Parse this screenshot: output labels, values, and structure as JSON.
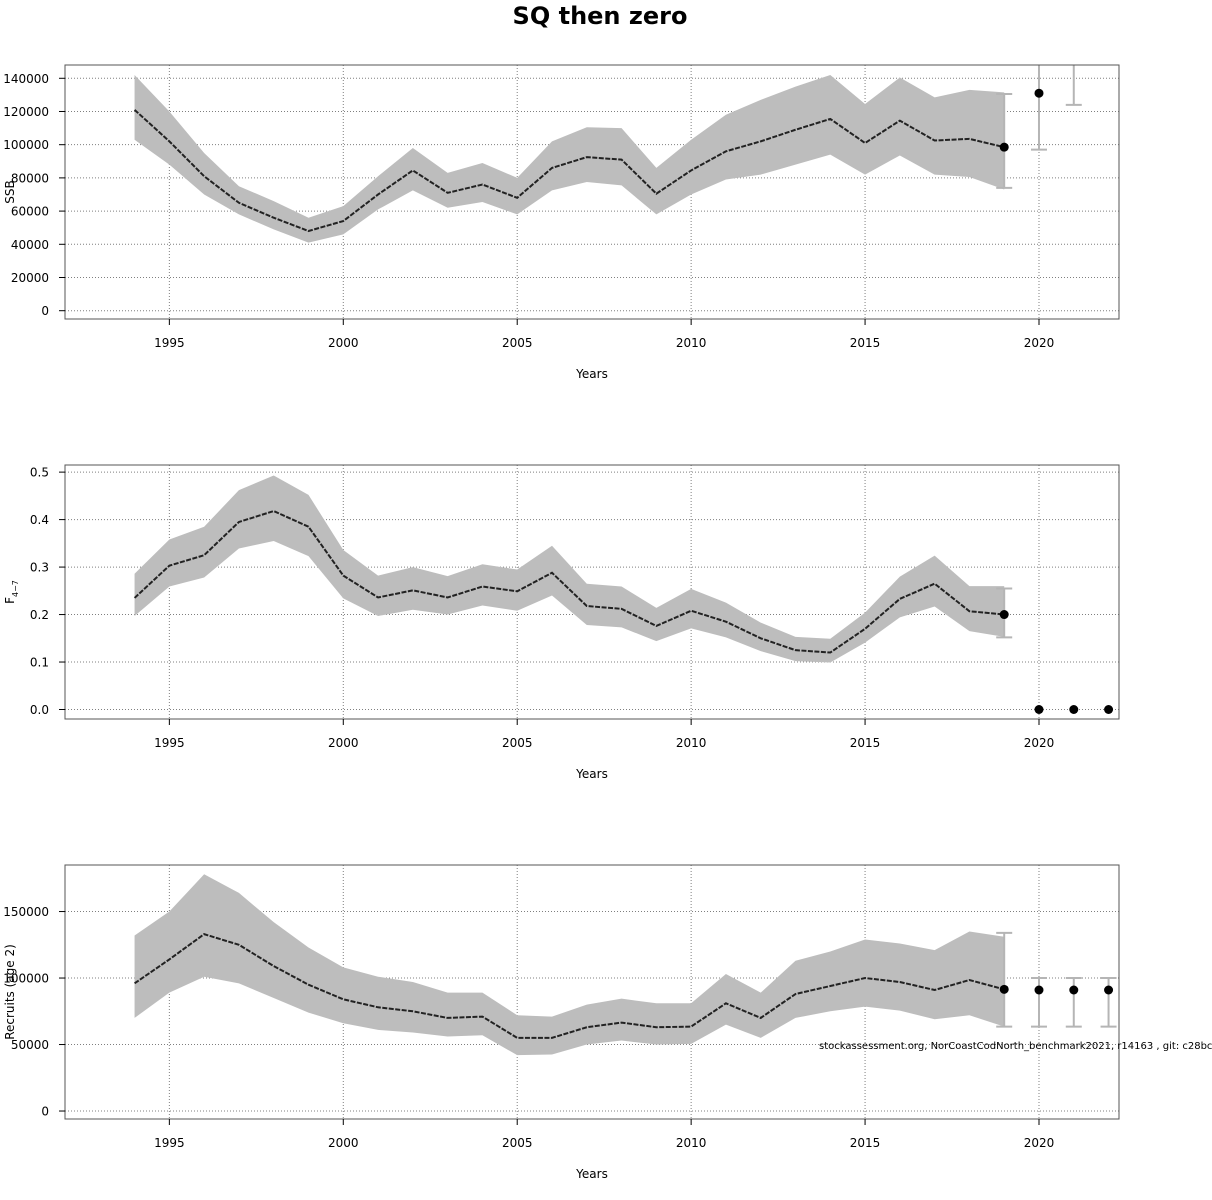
{
  "title": "SQ then zero",
  "footnote": "stockassessment.org, NorCoastCodNorth_benchmark2021, r14163 , git: c28bc",
  "colors": {
    "band": "#bdbdbd",
    "line": "#222222",
    "forecast": "#b5b5b5",
    "grid": "#7f7f7f"
  },
  "chart_data": [
    {
      "type": "line",
      "title": "",
      "xlabel": "Years",
      "ylabel": "SSB",
      "xlim": [
        1992,
        2022.3
      ],
      "ylim": [
        -5000,
        148000
      ],
      "x_ticks": [
        1995,
        2000,
        2005,
        2010,
        2015,
        2020
      ],
      "y_ticks": [
        0,
        20000,
        40000,
        60000,
        80000,
        100000,
        120000,
        140000
      ],
      "y_tick_labels": [
        "0",
        "20000",
        "40000",
        "60000",
        "80000",
        "100000",
        "120000",
        "140000"
      ],
      "grid": true,
      "years": [
        1994,
        1995,
        1996,
        1997,
        1998,
        1999,
        2000,
        2001,
        2002,
        2003,
        2004,
        2005,
        2006,
        2007,
        2008,
        2009,
        2010,
        2011,
        2012,
        2013,
        2014,
        2015,
        2016,
        2017,
        2018,
        2019
      ],
      "estimate": [
        121000,
        102000,
        81000,
        65000,
        56000,
        48000,
        54000,
        70000,
        84500,
        71000,
        76000,
        68000,
        86000,
        92500,
        91000,
        70500,
        84500,
        96000,
        102000,
        109000,
        115500,
        101000,
        114500,
        102500,
        103500,
        98500
      ],
      "lower": [
        103000,
        88000,
        70000,
        58000,
        49000,
        41000,
        46000,
        61000,
        72500,
        62000,
        65500,
        58000,
        72500,
        77500,
        75500,
        58000,
        70000,
        79000,
        82000,
        88000,
        94000,
        82000,
        93500,
        82000,
        80500,
        73000
      ],
      "upper": [
        142000,
        120000,
        95000,
        75000,
        66000,
        56000,
        63000,
        81000,
        98000,
        83000,
        89000,
        80000,
        102000,
        110500,
        110000,
        86000,
        103000,
        118000,
        127000,
        135000,
        142000,
        124500,
        140500,
        128500,
        133000,
        131500
      ],
      "forecast": [
        {
          "x": 2019,
          "value": 98500,
          "lower": 74000,
          "upper": 130500
        },
        {
          "x": 2020,
          "value": 131000,
          "lower": 97000,
          "upper": 150000
        },
        {
          "x": 2021,
          "value": null,
          "lower": 124000,
          "upper": 150000
        }
      ]
    },
    {
      "type": "line",
      "title": "",
      "xlabel": "Years",
      "ylabel": "F",
      "ylabel_sub": "4−7",
      "xlim": [
        1992,
        2022.3
      ],
      "ylim": [
        -0.02,
        0.515
      ],
      "x_ticks": [
        1995,
        2000,
        2005,
        2010,
        2015,
        2020
      ],
      "y_ticks": [
        0,
        0.1,
        0.2,
        0.3,
        0.4,
        0.5
      ],
      "y_tick_labels": [
        "0.0",
        "0.1",
        "0.2",
        "0.3",
        "0.4",
        "0.5"
      ],
      "grid": true,
      "years": [
        1994,
        1995,
        1996,
        1997,
        1998,
        1999,
        2000,
        2001,
        2002,
        2003,
        2004,
        2005,
        2006,
        2007,
        2008,
        2009,
        2010,
        2011,
        2012,
        2013,
        2014,
        2015,
        2016,
        2017,
        2018,
        2019
      ],
      "estimate": [
        0.235,
        0.303,
        0.325,
        0.395,
        0.418,
        0.385,
        0.282,
        0.236,
        0.251,
        0.236,
        0.259,
        0.249,
        0.288,
        0.218,
        0.212,
        0.176,
        0.208,
        0.185,
        0.15,
        0.125,
        0.12,
        0.17,
        0.233,
        0.265,
        0.207,
        0.2
      ],
      "lower": [
        0.197,
        0.259,
        0.278,
        0.339,
        0.355,
        0.323,
        0.234,
        0.197,
        0.21,
        0.2,
        0.219,
        0.208,
        0.24,
        0.178,
        0.173,
        0.144,
        0.171,
        0.152,
        0.123,
        0.102,
        0.099,
        0.141,
        0.194,
        0.217,
        0.165,
        0.153
      ],
      "upper": [
        0.286,
        0.358,
        0.385,
        0.462,
        0.493,
        0.452,
        0.336,
        0.282,
        0.3,
        0.281,
        0.306,
        0.295,
        0.345,
        0.265,
        0.259,
        0.214,
        0.254,
        0.225,
        0.183,
        0.153,
        0.149,
        0.204,
        0.28,
        0.324,
        0.26,
        0.26
      ],
      "forecast": [
        {
          "x": 2019,
          "value": 0.2,
          "lower": 0.152,
          "upper": 0.255
        },
        {
          "x": 2020,
          "value": 0.0,
          "lower": null,
          "upper": null
        },
        {
          "x": 2021,
          "value": 0.0,
          "lower": null,
          "upper": null
        },
        {
          "x": 2022,
          "value": 0.0,
          "lower": null,
          "upper": null
        }
      ]
    },
    {
      "type": "line",
      "title": "",
      "xlabel": "Years",
      "ylabel": "Recruits (age 2)",
      "xlim": [
        1992,
        2022.3
      ],
      "ylim": [
        -6000,
        185000
      ],
      "x_ticks": [
        1995,
        2000,
        2005,
        2010,
        2015,
        2020
      ],
      "y_ticks": [
        0,
        50000,
        100000,
        150000
      ],
      "y_tick_labels": [
        "0",
        "50000",
        "100000",
        "150000"
      ],
      "grid": true,
      "years": [
        1994,
        1995,
        1996,
        1997,
        1998,
        1999,
        2000,
        2001,
        2002,
        2003,
        2004,
        2005,
        2006,
        2007,
        2008,
        2009,
        2010,
        2011,
        2012,
        2013,
        2014,
        2015,
        2016,
        2017,
        2018,
        2019
      ],
      "estimate": [
        96000,
        114000,
        133000,
        125000,
        109000,
        95000,
        84000,
        78000,
        75000,
        70000,
        71000,
        55000,
        55000,
        63000,
        66500,
        63000,
        63500,
        81000,
        70000,
        88000,
        94000,
        100000,
        97000,
        91000,
        98500,
        91500
      ],
      "lower": [
        70000,
        89000,
        101000,
        96000,
        85000,
        74000,
        66000,
        61000,
        59000,
        56000,
        57000,
        42000,
        42500,
        50000,
        53000,
        50000,
        50500,
        65000,
        55000,
        70000,
        75000,
        78500,
        75500,
        69000,
        72000,
        63500
      ],
      "upper": [
        132000,
        150000,
        178000,
        164000,
        142000,
        123000,
        108000,
        101000,
        97000,
        89000,
        89000,
        72000,
        71000,
        80000,
        84500,
        81000,
        81000,
        103000,
        89000,
        113000,
        120000,
        129000,
        126000,
        121000,
        135000,
        131000
      ],
      "forecast": [
        {
          "x": 2019,
          "value": 91500,
          "lower": 63500,
          "upper": 134000
        },
        {
          "x": 2020,
          "value": 91000,
          "lower": 63500,
          "upper": 100000
        },
        {
          "x": 2021,
          "value": 91000,
          "lower": 63500,
          "upper": 100000
        },
        {
          "x": 2022,
          "value": 91000,
          "lower": 63500,
          "upper": 100000
        }
      ]
    }
  ]
}
